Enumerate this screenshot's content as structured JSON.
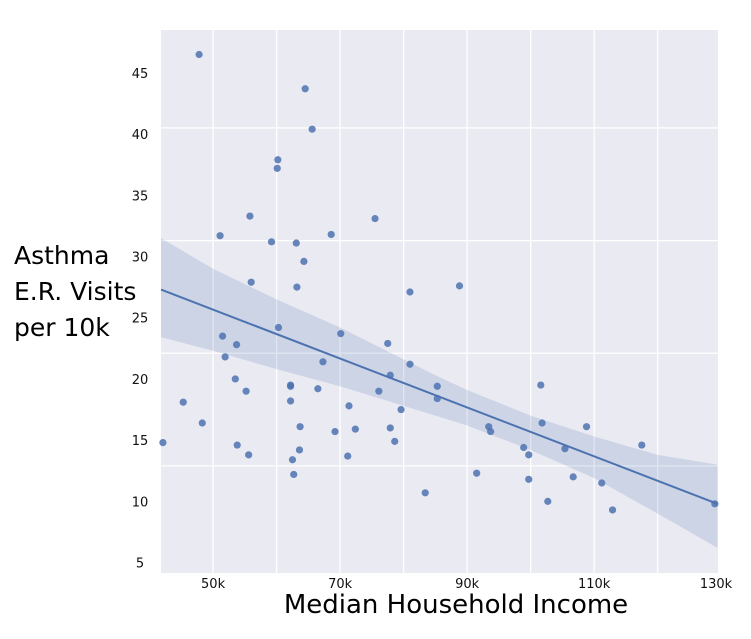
{
  "chart_data": {
    "type": "scatter",
    "title": "",
    "xlabel": "Median Household Income",
    "ylabel_lines": [
      "Asthma",
      "E.R. Visits",
      "per 10k"
    ],
    "xlim": [
      41.8,
      129.5
    ],
    "ylim": [
      4.15,
      48.5
    ],
    "x_unit": "thousands of dollars",
    "xticks": [
      50,
      70,
      90,
      110,
      130
    ],
    "xtick_labels": [
      "50k",
      "70k",
      "90k",
      "110k",
      "130k"
    ],
    "yticks": [
      5,
      10,
      15,
      20,
      25,
      30,
      35,
      40,
      45
    ],
    "ytick_labels": [
      "5",
      "10",
      "15",
      "20",
      "25",
      "30",
      "35",
      "40",
      "45"
    ],
    "xgrid": [
      50,
      60,
      70,
      80,
      90,
      100,
      110,
      120
    ],
    "ygrid": [
      12.9,
      22.1,
      31.3,
      40.5
    ],
    "grid": true,
    "colors": {
      "background": "#eaeaf2",
      "points": "#4c72b0",
      "line": "#4c72b0",
      "band": "#4c72b0",
      "grid": "#ffffff"
    },
    "points": [
      [
        47.8,
        46.5
      ],
      [
        64.5,
        43.7
      ],
      [
        65.6,
        40.4
      ],
      [
        60.2,
        37.9
      ],
      [
        60.1,
        37.2
      ],
      [
        55.8,
        33.3
      ],
      [
        75.5,
        33.1
      ],
      [
        51.1,
        31.7
      ],
      [
        68.6,
        31.8
      ],
      [
        59.2,
        31.2
      ],
      [
        63.1,
        31.1
      ],
      [
        64.3,
        29.6
      ],
      [
        56.0,
        27.9
      ],
      [
        63.2,
        27.5
      ],
      [
        81.0,
        27.1
      ],
      [
        60.3,
        24.2
      ],
      [
        51.5,
        23.5
      ],
      [
        70.1,
        23.7
      ],
      [
        53.7,
        22.8
      ],
      [
        77.5,
        22.9
      ],
      [
        51.9,
        21.8
      ],
      [
        67.3,
        21.4
      ],
      [
        81.0,
        21.2
      ],
      [
        53.5,
        20.0
      ],
      [
        77.9,
        20.3
      ],
      [
        55.2,
        19.0
      ],
      [
        62.2,
        19.5
      ],
      [
        62.2,
        19.4
      ],
      [
        66.5,
        19.2
      ],
      [
        76.1,
        19.0
      ],
      [
        45.3,
        18.1
      ],
      [
        62.2,
        18.2
      ],
      [
        71.4,
        17.8
      ],
      [
        79.6,
        17.5
      ],
      [
        48.3,
        16.4
      ],
      [
        63.7,
        16.1
      ],
      [
        72.4,
        15.9
      ],
      [
        77.9,
        16.0
      ],
      [
        69.2,
        15.7
      ],
      [
        42.1,
        14.8
      ],
      [
        53.8,
        14.6
      ],
      [
        78.6,
        14.9
      ],
      [
        63.6,
        14.2
      ],
      [
        55.6,
        13.8
      ],
      [
        71.2,
        13.7
      ],
      [
        62.5,
        13.4
      ],
      [
        62.7,
        12.2
      ],
      [
        83.4,
        10.7
      ],
      [
        85.3,
        19.4
      ],
      [
        85.3,
        18.4
      ],
      [
        88.8,
        27.6
      ],
      [
        101.6,
        19.5
      ],
      [
        101.8,
        16.4
      ],
      [
        93.4,
        16.1
      ],
      [
        93.7,
        15.7
      ],
      [
        108.8,
        16.1
      ],
      [
        117.5,
        14.6
      ],
      [
        98.9,
        14.4
      ],
      [
        99.7,
        13.8
      ],
      [
        105.4,
        14.3
      ],
      [
        91.5,
        12.3
      ],
      [
        99.7,
        11.8
      ],
      [
        106.7,
        12.0
      ],
      [
        111.2,
        11.5
      ],
      [
        102.7,
        10.0
      ],
      [
        112.9,
        9.3
      ],
      [
        129.0,
        9.8
      ]
    ],
    "regression": {
      "x": [
        41.8,
        129.4
      ],
      "y": [
        27.3,
        9.8
      ]
    },
    "confidence_band": {
      "x": [
        41.8,
        50,
        60,
        70,
        80,
        85,
        90,
        100,
        110,
        120,
        129.4
      ],
      "upper": [
        31.5,
        29.0,
        26.5,
        24.2,
        21.6,
        20.3,
        19.1,
        17.0,
        15.3,
        13.8,
        13.0
      ],
      "lower": [
        23.4,
        22.3,
        20.8,
        19.4,
        17.8,
        17.0,
        16.2,
        14.2,
        11.9,
        9.0,
        6.2
      ]
    }
  }
}
